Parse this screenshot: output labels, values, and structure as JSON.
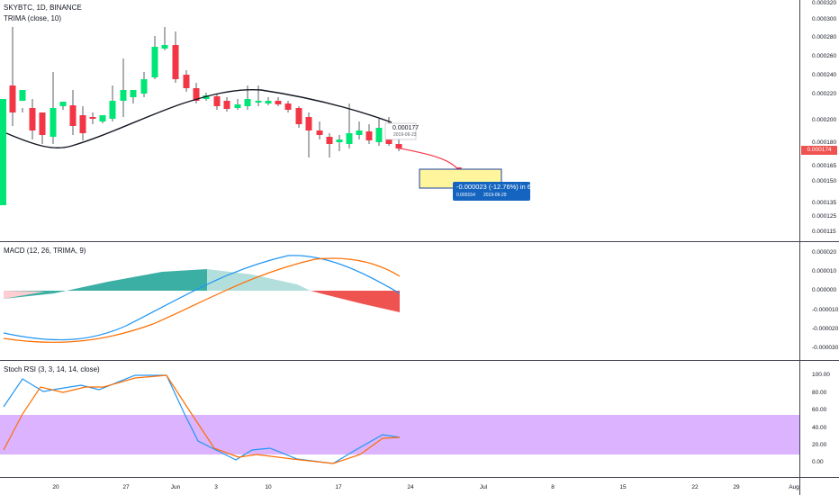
{
  "header": {
    "symbol_line": "SKYBTC, 1D, BINANCE",
    "indicator": "TRIMA (close, 10)"
  },
  "macd_legend": "MACD (12, 26, TRIMA, 9)",
  "stoch_legend": "Stoch RSI (3, 3, 14, 14, close)",
  "price_axis": [
    "0.000320",
    "0.000300",
    "0.000280",
    "0.000260",
    "0.000240",
    "0.000220",
    "0.000200",
    "0.000180",
    "0.000165",
    "0.000150",
    "0.000135",
    "0.000125",
    "0.000115"
  ],
  "last_price": "0.000174",
  "macd_axis": [
    "0.000020",
    "0.000010",
    "0.000000",
    "-0.000010",
    "-0.000020",
    "-0.000030"
  ],
  "stoch_axis": [
    "100.00",
    "80.00",
    "60.00",
    "40.00",
    "20.00",
    "0.00"
  ],
  "x_axis": [
    "20",
    "27",
    "Jun",
    "3",
    "10",
    "17",
    "24",
    "Jul",
    "8",
    "15",
    "22",
    "29",
    "Aug"
  ],
  "tooltip": {
    "price": "0.000177",
    "date": "2019-06-23"
  },
  "projection": {
    "main": "-0.000023 (-12.76%) in 6d",
    "sub_price": "0.000154",
    "sub_date": "2019-06-29"
  },
  "colors": {
    "up": "#00e676",
    "down": "#f23645",
    "trima": "#131722",
    "macd": "#2196f3",
    "signal": "#ff6d00",
    "stoch_band": "#d5a6ff"
  }
}
